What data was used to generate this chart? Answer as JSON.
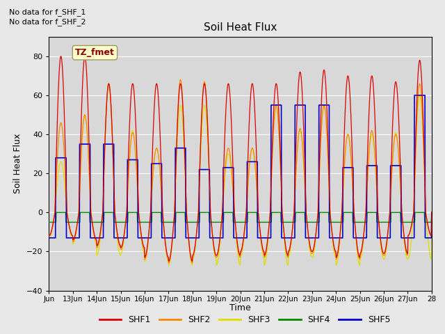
{
  "title": "Soil Heat Flux",
  "ylabel": "Soil Heat Flux",
  "xlabel": "Time",
  "text_no_data_1": "No data for f_SHF_1",
  "text_no_data_2": "No data for f_SHF_2",
  "legend_label": "TZ_fmet",
  "legend_entries": [
    "SHF1",
    "SHF2",
    "SHF3",
    "SHF4",
    "SHF5"
  ],
  "series_colors": [
    "#dd0000",
    "#ff8800",
    "#dddd00",
    "#008800",
    "#0000cc"
  ],
  "ylim": [
    -40,
    90
  ],
  "yticks": [
    -40,
    -20,
    0,
    20,
    40,
    60,
    80
  ],
  "background_color": "#d8d8d8",
  "fig_bg_color": "#e8e8e8",
  "x_start_day": 12,
  "x_end_day": 28,
  "x_tick_days": [
    12,
    13,
    14,
    15,
    16,
    17,
    18,
    19,
    20,
    21,
    22,
    23,
    24,
    25,
    26,
    27,
    28
  ],
  "x_tick_labels": [
    "Jun",
    "13Jun",
    "14Jun",
    "15Jun",
    "16Jun",
    "17Jun",
    "18Jun",
    "19Jun",
    "20Jun",
    "21Jun",
    "22Jun",
    "23Jun",
    "24Jun",
    "25Jun",
    "26Jun",
    "27Jun",
    "28"
  ],
  "shf1_peaks": [
    80,
    80,
    66,
    66,
    66,
    66,
    66,
    66,
    66,
    66,
    72,
    73,
    70,
    70,
    67,
    78
  ],
  "shf1_troughs": [
    -12,
    -14,
    -17,
    -18,
    -23,
    -25,
    -22,
    -22,
    -20,
    -22,
    -20,
    -20,
    -23,
    -21,
    -21,
    -12
  ],
  "shf2_peaks": [
    46,
    50,
    66,
    41,
    33,
    68,
    67,
    33,
    33,
    55,
    43,
    55,
    40,
    42,
    40,
    66
  ],
  "shf2_troughs": [
    -12,
    -15,
    -18,
    -19,
    -24,
    -26,
    -23,
    -23,
    -21,
    -23,
    -21,
    -21,
    -24,
    -22,
    -22,
    -12
  ],
  "shf3_peaks": [
    26,
    50,
    65,
    42,
    33,
    55,
    55,
    30,
    33,
    54,
    42,
    55,
    40,
    40,
    41,
    60
  ],
  "shf3_troughs": [
    -13,
    -16,
    -22,
    -21,
    -25,
    -27,
    -24,
    -27,
    -23,
    -27,
    -23,
    -23,
    -27,
    -24,
    -24,
    -24
  ],
  "shf5_day": [
    28,
    35,
    35,
    27,
    25,
    33,
    22,
    23,
    26,
    55,
    55,
    55,
    23,
    24,
    24,
    60
  ],
  "shf5_night": -13.0,
  "shf4_day": 0.0,
  "shf4_night": -5.0,
  "n_days": 16,
  "pts_per_day": 96
}
